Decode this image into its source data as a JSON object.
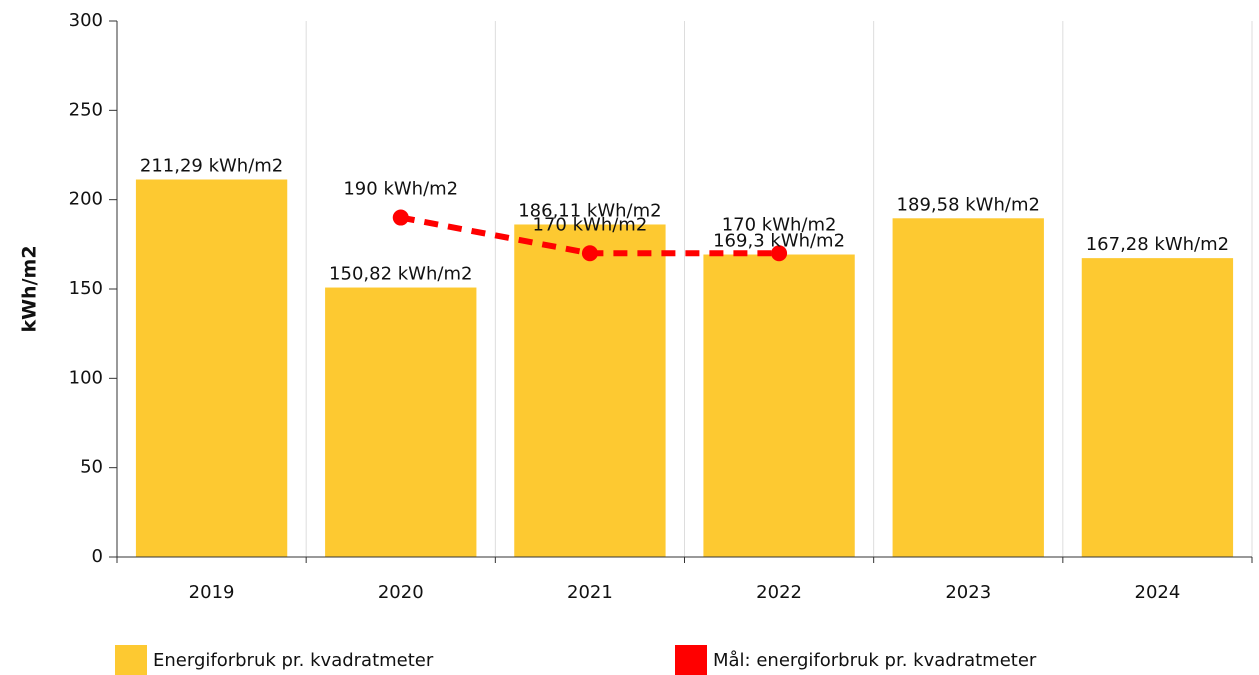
{
  "chart_data": {
    "type": "bar",
    "y_label": "kWh/m2",
    "categories": [
      "2019",
      "2020",
      "2021",
      "2022",
      "2023",
      "2024"
    ],
    "series": [
      {
        "name": "Energiforbruk pr. kvadratmeter",
        "type": "bar",
        "color": "#fdc931",
        "values": [
          211.29,
          150.82,
          186.11,
          169.3,
          189.58,
          167.28
        ],
        "value_labels": [
          "211,29 kWh/m2",
          "150,82 kWh/m2",
          "186,11 kWh/m2",
          "169,3 kWh/m2",
          "189,58 kWh/m2",
          "167,28 kWh/m2"
        ]
      },
      {
        "name": "Mål: energiforbruk pr. kvadratmeter",
        "type": "line",
        "color": "#ff0000",
        "values": [
          null,
          190,
          170,
          170,
          null,
          null
        ],
        "value_labels": [
          null,
          "190 kWh/m2",
          "170 kWh/m2",
          "170 kWh/m2",
          null,
          null
        ]
      }
    ],
    "ylim": [
      0,
      300
    ],
    "yticks": [
      0,
      50,
      100,
      150,
      200,
      250,
      300
    ]
  }
}
